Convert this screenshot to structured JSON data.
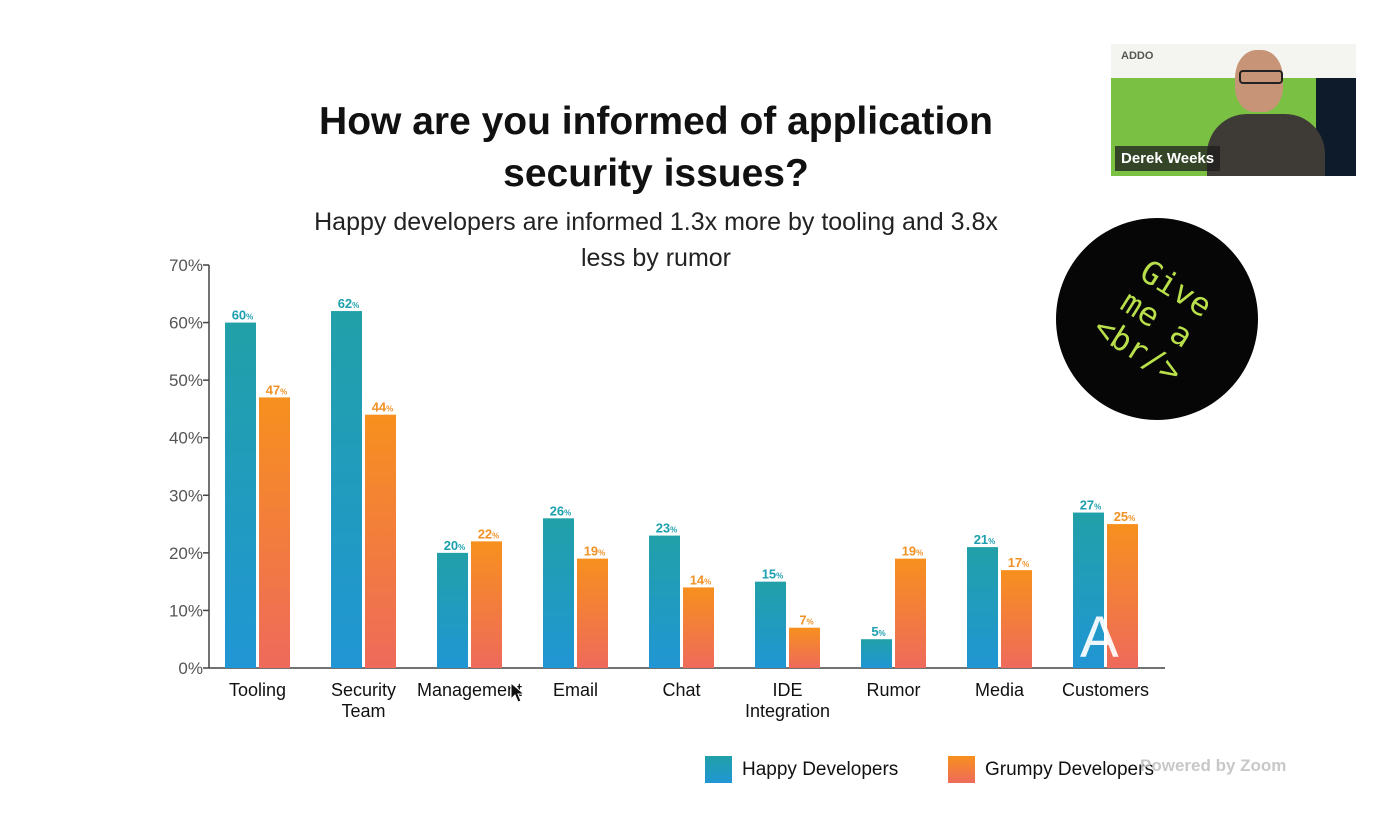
{
  "slide": {
    "title": "How are you informed of application security issues?",
    "subtitle": "Happy developers are informed 1.3x more by tooling and 3.8x less by rumor"
  },
  "chart_data": {
    "type": "bar",
    "title": "How are you informed of application security issues?",
    "subtitle": "Happy developers are informed 1.3x more by tooling and 3.8x less by rumor",
    "categories": [
      "Tooling",
      "Security Team",
      "Management",
      "Email",
      "Chat",
      "IDE Integration",
      "Rumor",
      "Media",
      "Customers"
    ],
    "category_lines": [
      [
        "Tooling"
      ],
      [
        "Security",
        "Team"
      ],
      [
        "Management"
      ],
      [
        "Email"
      ],
      [
        "Chat"
      ],
      [
        "IDE",
        "Integration"
      ],
      [
        "Rumor"
      ],
      [
        "Media"
      ],
      [
        "Customers"
      ]
    ],
    "series": [
      {
        "name": "Happy Developers",
        "values": [
          60,
          62,
          20,
          26,
          23,
          15,
          5,
          21,
          27
        ],
        "color_top": "#21a0a8",
        "color_bottom": "#2196d4"
      },
      {
        "name": "Grumpy Developers",
        "values": [
          47,
          44,
          22,
          19,
          14,
          7,
          19,
          17,
          25
        ],
        "color_top": "#f7901e",
        "color_bottom": "#ee6a5b"
      }
    ],
    "ylim": [
      0,
      70
    ],
    "yticks": [
      "0%",
      "10%",
      "20%",
      "30%",
      "40%",
      "50%",
      "60%",
      "70%"
    ],
    "value_suffix": "%",
    "label_colors": [
      "#1c9fae",
      "#f19227"
    ],
    "grid": false,
    "legend_position": "bottom-right"
  },
  "legend": {
    "happy": "Happy Developers",
    "grumpy": "Grumpy Developers",
    "happy_color": "#1f9bc4",
    "grumpy_color": "#f58a3b"
  },
  "webcam": {
    "logo": "ADDO",
    "participant_name": "Derek Weeks"
  },
  "badge": {
    "lines": [
      "Give",
      "me a",
      "<br/>"
    ],
    "text_color": "#b9e04a"
  },
  "overlay": {
    "zoom_text": "Powered by Zoom",
    "watermark": "A"
  }
}
